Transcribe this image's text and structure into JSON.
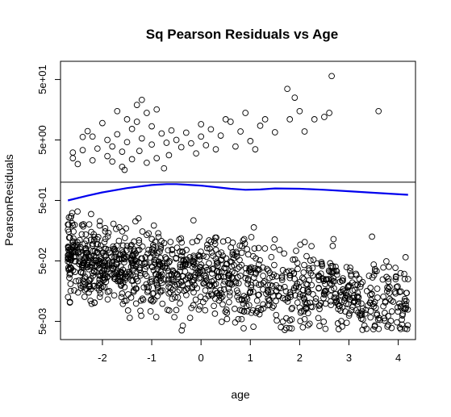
{
  "chart_data": {
    "type": "scatter",
    "title": "Sq Pearson Residuals vs Age",
    "xlabel": "age",
    "ylabel": "PearsonResiduals",
    "x_ticks": [
      -2,
      -1,
      0,
      1,
      2,
      3,
      4
    ],
    "x_tick_labels": [
      "-2",
      "-1",
      "0",
      "1",
      "2",
      "3",
      "4"
    ],
    "xlim": [
      -2.85,
      4.35
    ],
    "y_scale": "log",
    "y_ticks": [
      0.005,
      0.05,
      0.5,
      5,
      50
    ],
    "y_tick_labels": [
      "5e-03",
      "5e-02",
      "5e-01",
      "5e+00",
      "5e+01"
    ],
    "ylim": [
      0.0025,
      100
    ],
    "reference_line_y": 1,
    "marker": "open-circle",
    "point_color": "#000000",
    "smooth_color": "#0000ee",
    "series": [
      {
        "name": "PearsonResiduals",
        "kind": "points",
        "cloud": {
          "n": 1250,
          "seed": 7,
          "x_range": [
            -2.7,
            4.2
          ],
          "x_density": "decreasing",
          "log10_center_at_x_min": -1.25,
          "log10_slope_per_x": -0.11,
          "log10_sd": 0.33,
          "log10_cap": -0.05
        },
        "points_upper": [
          [
            -2.6,
            2.5
          ],
          [
            -2.6,
            3.1
          ],
          [
            -2.5,
            2.0
          ],
          [
            -2.4,
            3.4
          ],
          [
            -2.4,
            5.6
          ],
          [
            -2.3,
            7.0
          ],
          [
            -2.2,
            5.7
          ],
          [
            -2.2,
            2.3
          ],
          [
            -2.1,
            3.6
          ],
          [
            -2.0,
            9.5
          ],
          [
            -1.9,
            5.0
          ],
          [
            -1.9,
            2.7
          ],
          [
            -1.8,
            3.9
          ],
          [
            -1.8,
            2.2
          ],
          [
            -1.7,
            15.0
          ],
          [
            -1.7,
            6.2
          ],
          [
            -1.6,
            3.2
          ],
          [
            -1.6,
            1.8
          ],
          [
            -1.55,
            1.6
          ],
          [
            -1.5,
            11.0
          ],
          [
            -1.5,
            4.6
          ],
          [
            -1.4,
            2.4
          ],
          [
            -1.4,
            7.6
          ],
          [
            -1.3,
            19.0
          ],
          [
            -1.3,
            10.0
          ],
          [
            -1.25,
            3.3
          ],
          [
            -1.2,
            23.0
          ],
          [
            -1.2,
            5.3
          ],
          [
            -1.1,
            14.0
          ],
          [
            -1.1,
            2.1
          ],
          [
            -1.0,
            8.4
          ],
          [
            -1.0,
            4.2
          ],
          [
            -0.9,
            16.0
          ],
          [
            -0.9,
            2.5
          ],
          [
            -0.8,
            6.4
          ],
          [
            -0.75,
            1.7
          ],
          [
            -0.7,
            4.5
          ],
          [
            -0.65,
            2.8
          ],
          [
            -0.6,
            7.2
          ],
          [
            -0.5,
            5.0
          ],
          [
            -0.4,
            3.8
          ],
          [
            -0.3,
            6.6
          ],
          [
            -0.2,
            4.4
          ],
          [
            -0.1,
            3.0
          ],
          [
            0.0,
            5.7
          ],
          [
            0.0,
            9.1
          ],
          [
            0.1,
            4.1
          ],
          [
            0.2,
            7.5
          ],
          [
            0.3,
            3.5
          ],
          [
            0.4,
            5.9
          ],
          [
            0.5,
            11.0
          ],
          [
            0.6,
            10.0
          ],
          [
            0.7,
            3.9
          ],
          [
            0.8,
            6.9
          ],
          [
            0.9,
            14.0
          ],
          [
            1.0,
            4.8
          ],
          [
            1.1,
            3.5
          ],
          [
            1.2,
            8.6
          ],
          [
            1.3,
            11.0
          ],
          [
            1.5,
            6.7
          ],
          [
            1.75,
            35.0
          ],
          [
            1.8,
            11.0
          ],
          [
            1.9,
            25.0
          ],
          [
            2.0,
            15.0
          ],
          [
            2.1,
            6.9
          ],
          [
            2.3,
            11.0
          ],
          [
            2.5,
            12.0
          ],
          [
            2.6,
            14.0
          ],
          [
            2.65,
            57.0
          ],
          [
            3.6,
            15.0
          ]
        ]
      },
      {
        "name": "smooth",
        "kind": "line",
        "x": [
          -2.7,
          -2.3,
          -2.0,
          -1.5,
          -1.0,
          -0.7,
          -0.5,
          -0.3,
          0.0,
          0.3,
          0.6,
          0.9,
          1.2,
          1.5,
          2.0,
          2.5,
          3.0,
          3.5,
          4.2
        ],
        "y": [
          0.5,
          0.6,
          0.68,
          0.8,
          0.9,
          0.93,
          0.93,
          0.91,
          0.88,
          0.83,
          0.78,
          0.75,
          0.76,
          0.79,
          0.78,
          0.75,
          0.71,
          0.67,
          0.62
        ]
      }
    ]
  }
}
